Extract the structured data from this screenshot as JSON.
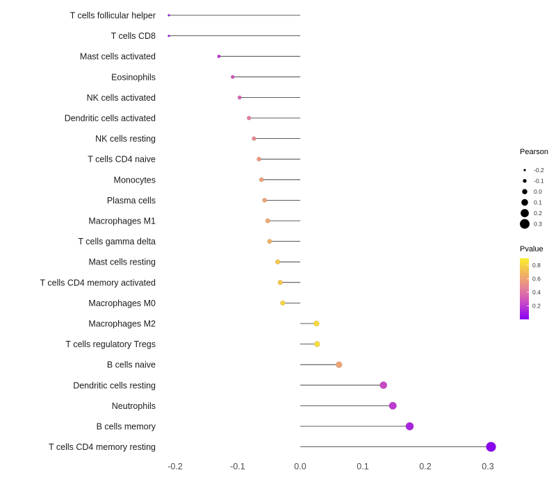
{
  "chart_data": {
    "type": "lollipop",
    "title": "",
    "xlabel": "",
    "ylabel": "",
    "grid": false,
    "xlim": [
      -0.25,
      0.34
    ],
    "x_ticks": [
      -0.2,
      -0.1,
      0.0,
      0.1,
      0.2,
      0.3
    ],
    "x_tick_labels": [
      "-0.2",
      "-0.1",
      "0.0",
      "0.1",
      "0.2",
      "0.3"
    ],
    "categories": [
      "T cells follicular helper",
      "T cells CD8",
      "Mast cells activated",
      "Eosinophils",
      "NK cells activated",
      "Dendritic cells activated",
      "NK cells resting",
      "T cells CD4 naive",
      "Monocytes",
      "Plasma cells",
      "Macrophages M1",
      "T cells gamma delta",
      "Mast cells resting",
      "T cells CD4 memory activated",
      "Macrophages M0",
      "Macrophages M2",
      "T cells regulatory Tregs",
      "B cells naive",
      "Dendritic cells resting",
      "Neutrophils",
      "B cells memory",
      "T cells CD4 memory resting"
    ],
    "series": [
      {
        "name": "Pearson",
        "values": [
          -0.21,
          -0.21,
          -0.13,
          -0.108,
          -0.097,
          -0.082,
          -0.074,
          -0.066,
          -0.062,
          -0.057,
          -0.052,
          -0.049,
          -0.036,
          -0.032,
          -0.028,
          0.026,
          0.027,
          0.062,
          0.133,
          0.148,
          0.175,
          0.305
        ]
      },
      {
        "name": "Pvalue",
        "values": [
          0.08,
          0.08,
          0.2,
          0.3,
          0.35,
          0.45,
          0.5,
          0.55,
          0.58,
          0.6,
          0.62,
          0.65,
          0.75,
          0.75,
          0.8,
          0.82,
          0.82,
          0.6,
          0.25,
          0.2,
          0.12,
          0.01
        ]
      }
    ],
    "legend": {
      "size": {
        "title": "Pearson",
        "labels": [
          "-0.2",
          "-0.1",
          "0.0",
          "0.1",
          "0.2",
          "0.3"
        ],
        "values": [
          -0.2,
          -0.1,
          0.0,
          0.1,
          0.2,
          0.3
        ],
        "dot_color": "#000000"
      },
      "color": {
        "title": "Pvalue",
        "labels": [
          "0.8",
          "0.6",
          "0.4",
          "0.2"
        ],
        "values": [
          0.8,
          0.6,
          0.4,
          0.2
        ],
        "gradient_stops": [
          [
            0.02,
            "#8A06EF"
          ],
          [
            0.12,
            "#A823DE"
          ],
          [
            0.22,
            "#C242CC"
          ],
          [
            0.32,
            "#D35DB6"
          ],
          [
            0.45,
            "#E47F9B"
          ],
          [
            0.58,
            "#EE9F78"
          ],
          [
            0.72,
            "#F4C054"
          ],
          [
            0.85,
            "#F7E335"
          ],
          [
            0.9,
            "#F8EB34"
          ]
        ]
      },
      "position": "right"
    },
    "colors": {
      "stem": "#262626",
      "category_text": "#1a1a1a",
      "tick_text": "#4d4d4d",
      "legend_title_text": "#000000",
      "legend_label_text": "#333333",
      "background": "#ffffff"
    }
  }
}
